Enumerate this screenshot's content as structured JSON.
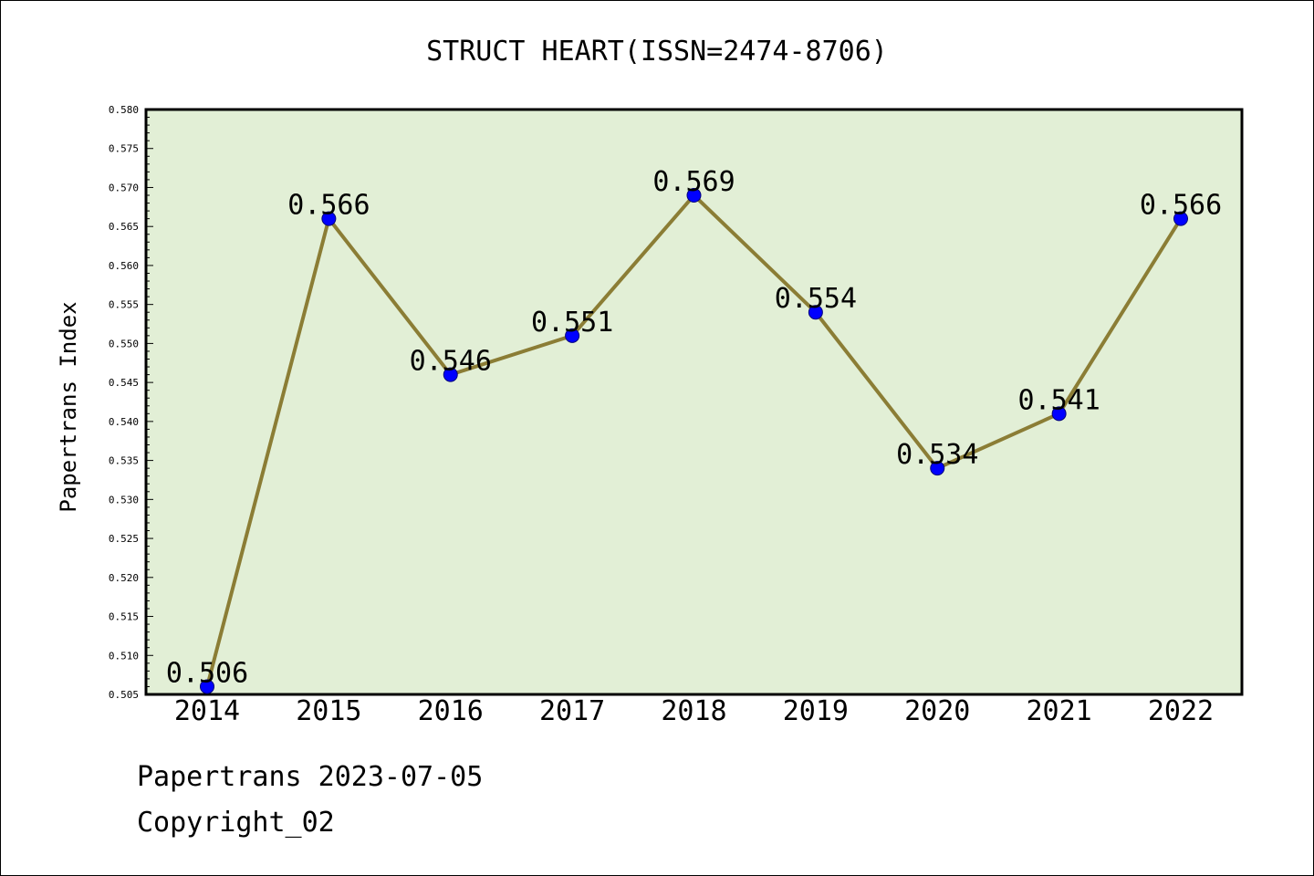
{
  "chart_data": {
    "type": "line",
    "title": "STRUCT HEART(ISSN=2474-8706)",
    "xlabel": "",
    "ylabel": "Papertrans Index",
    "categories": [
      "2014",
      "2015",
      "2016",
      "2017",
      "2018",
      "2019",
      "2020",
      "2021",
      "2022"
    ],
    "series": [
      {
        "values": [
          0.506,
          0.566,
          0.546,
          0.551,
          0.569,
          0.554,
          0.534,
          0.541,
          0.566
        ],
        "data_labels": [
          "0.506",
          "0.566",
          "0.546",
          "0.551",
          "0.569",
          "0.554",
          "0.534",
          "0.541",
          "0.566"
        ]
      }
    ],
    "ylim": [
      0.505,
      0.58
    ],
    "yticks": [
      "0.505",
      "0.510",
      "0.515",
      "0.520",
      "0.525",
      "0.530",
      "0.535",
      "0.540",
      "0.545",
      "0.550",
      "0.555",
      "0.560",
      "0.565",
      "0.570",
      "0.575",
      "0.580"
    ],
    "grid": false,
    "legend": "none",
    "colors": {
      "plot_background": "#e2efd6",
      "line": "#8b7d35",
      "marker": "#0000ff",
      "axis": "#000000"
    }
  },
  "footer": {
    "line1": "Papertrans 2023-07-05",
    "line2": "Copyright_02"
  }
}
